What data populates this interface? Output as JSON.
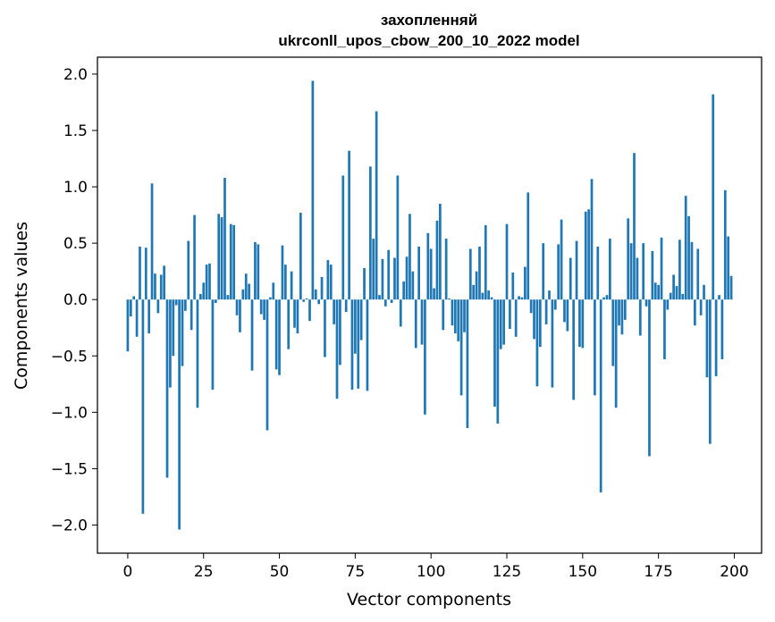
{
  "chart_data": {
    "type": "bar",
    "title_line1": "захопленняй",
    "title_line2": "ukrconll_upos_cbow_200_10_2022 model",
    "xlabel": "Vector components",
    "ylabel": "Components values",
    "xlim": [
      -10,
      209
    ],
    "ylim": [
      -2.25,
      2.15
    ],
    "xticks": [
      0,
      25,
      50,
      75,
      100,
      125,
      150,
      175,
      200
    ],
    "yticks": [
      -2.0,
      -1.5,
      -1.0,
      -0.5,
      0.0,
      0.5,
      1.0,
      1.5,
      2.0
    ],
    "ytick_labels": [
      "−2.0",
      "−1.5",
      "−1.0",
      "−0.5",
      "0.0",
      "0.5",
      "1.0",
      "1.5",
      "2.0"
    ],
    "bar_color": "#1f77b4",
    "values": [
      -0.46,
      -0.15,
      0.03,
      -0.33,
      0.47,
      -1.9,
      0.46,
      -0.3,
      1.03,
      0.23,
      -0.12,
      0.22,
      0.3,
      -1.58,
      -0.78,
      -0.5,
      -0.05,
      -2.04,
      -0.59,
      -0.1,
      0.52,
      -0.27,
      0.75,
      -0.96,
      0.05,
      0.15,
      0.31,
      0.32,
      -0.8,
      -0.03,
      0.76,
      0.73,
      1.08,
      0.04,
      0.67,
      0.66,
      -0.14,
      -0.29,
      0.09,
      0.23,
      0.14,
      -0.63,
      0.51,
      0.49,
      -0.13,
      -0.18,
      -1.16,
      0.02,
      0.15,
      -0.62,
      -0.67,
      0.48,
      0.31,
      -0.44,
      0.25,
      -0.25,
      -0.3,
      0.77,
      -0.02,
      0.01,
      -0.19,
      1.94,
      0.09,
      -0.04,
      0.2,
      -0.51,
      0.35,
      0.31,
      -0.22,
      -0.88,
      -0.58,
      1.1,
      -0.11,
      1.32,
      -0.8,
      -0.48,
      -0.79,
      -0.36,
      0.28,
      -0.81,
      1.18,
      0.54,
      1.67,
      0.04,
      0.36,
      -0.06,
      0.44,
      -0.03,
      0.37,
      1.1,
      -0.24,
      0.16,
      0.38,
      0.76,
      0.25,
      -0.43,
      0.47,
      -0.4,
      -1.02,
      0.59,
      0.45,
      0.1,
      0.7,
      0.85,
      -0.27,
      0.54,
      0.01,
      -0.23,
      -0.3,
      -0.37,
      -0.85,
      -0.29,
      -1.14,
      0.45,
      0.13,
      0.25,
      0.47,
      0.06,
      0.66,
      0.08,
      0.02,
      -0.95,
      -1.1,
      -0.44,
      -0.4,
      0.67,
      -0.26,
      0.24,
      -0.33,
      0.03,
      0.02,
      0.29,
      0.95,
      -0.12,
      -0.35,
      -0.77,
      -0.42,
      0.5,
      -0.22,
      0.08,
      -0.78,
      -0.09,
      0.49,
      0.71,
      -0.2,
      -0.28,
      0.37,
      -0.89,
      0.52,
      -0.42,
      -0.43,
      0.78,
      0.8,
      1.07,
      -0.85,
      0.47,
      -1.71,
      0.02,
      0.04,
      0.54,
      -0.59,
      -0.96,
      -0.23,
      -0.31,
      -0.18,
      0.72,
      0.5,
      1.3,
      0.37,
      -0.32,
      0.5,
      -0.06,
      -1.39,
      0.43,
      0.15,
      0.13,
      0.55,
      -0.53,
      -0.09,
      0.06,
      0.22,
      0.12,
      0.53,
      0.05,
      0.92,
      0.74,
      0.51,
      -0.23,
      0.45,
      -0.14,
      0.13,
      -0.69,
      -1.28,
      1.82,
      -0.68,
      0.04,
      -0.53,
      0.97,
      0.56,
      0.21
    ]
  }
}
